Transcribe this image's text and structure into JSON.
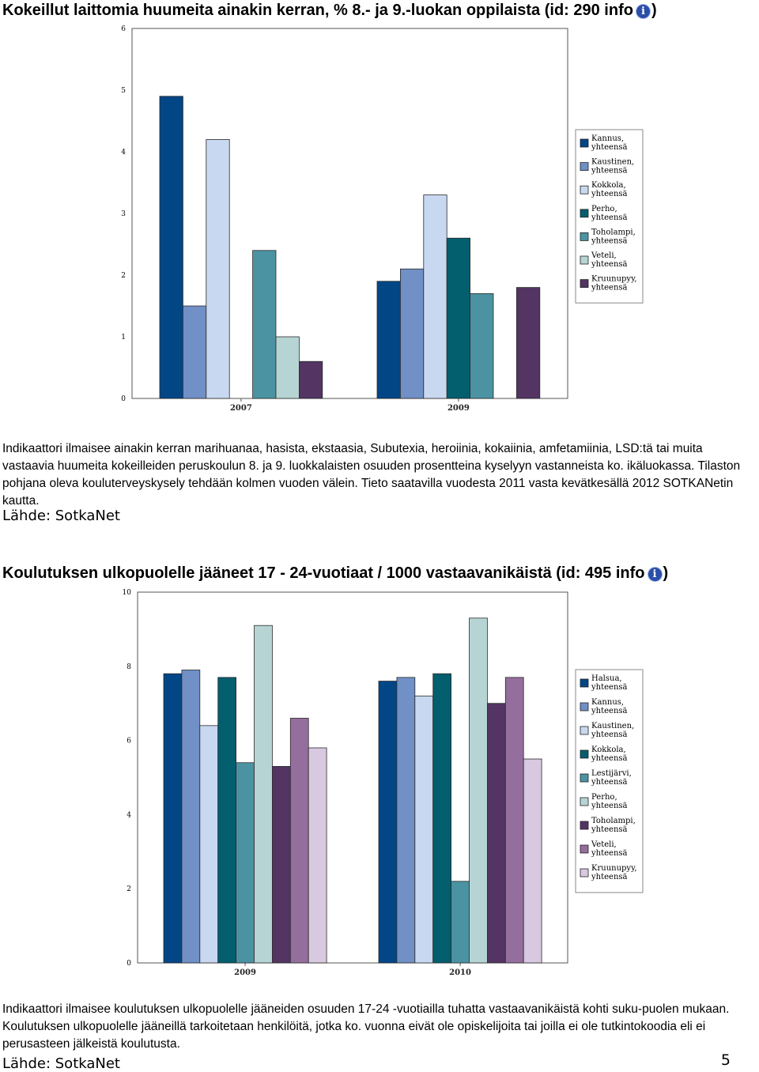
{
  "chart1": {
    "title": "Kokeillut laittomia huumeita ainakin kerran, % 8.- ja 9.-luokan oppilaista (id: 290 info",
    "title_close": ")",
    "description": "Indikaattori ilmaisee ainakin kerran marihuanaa, hasista, ekstaasia, Subutexia, heroiinia, kokaiinia, amfetamiinia, LSD:tä tai muita vastaavia huumeita kokeilleiden peruskoulun 8. ja 9. luokkalaisten osuuden prosentteina kyselyyn vastanneista ko. ikäluokassa. Tilaston pohjana oleva kouluterveyskysely tehdään kolmen vuoden välein. Tieto saatavilla vuodesta 2011 vasta kevätkesällä 2012 SOTKANetin kautta.",
    "source": "Lähde: SotkaNet"
  },
  "chart2": {
    "title": "Koulutuksen ulkopuolelle jääneet 17 - 24-vuotiaat / 1000 vastaavanikäistä (id: 495 info",
    "title_close": ")",
    "description": "Indikaattori ilmaisee koulutuksen ulkopuolelle jääneiden osuuden 17-24 -vuotiailla tuhatta vastaavanikäistä kohti suku-puolen mukaan. Koulutuksen ulkopuolelle jääneillä tarkoitetaan henkilöitä, jotka ko. vuonna eivät ole opiskelijoita tai joilla ei ole tutkintokoodia eli ei perusasteen jälkeistä koulutusta.",
    "source": "Lähde: SotkaNet"
  },
  "page_number": "5",
  "info_icon": "info-icon",
  "chart_data": [
    {
      "type": "bar",
      "title": "Kokeillut laittomia huumeita ainakin kerran, % 8.- ja 9.-luokan oppilaista",
      "categories": [
        "2007",
        "2009"
      ],
      "ylim": [
        0,
        6
      ],
      "yticks": [
        "0",
        "1",
        "2",
        "3",
        "4",
        "5",
        "6"
      ],
      "grid": false,
      "legend": "right",
      "series": [
        {
          "name": "Kannus, yhteensä",
          "color": "#034686",
          "values": [
            4.9,
            1.9
          ]
        },
        {
          "name": "Kaustinen, yhteensä",
          "color": "#7090c6",
          "values": [
            1.5,
            2.1
          ]
        },
        {
          "name": "Kokkola, yhteensä",
          "color": "#c8d8f0",
          "values": [
            4.2,
            3.3
          ]
        },
        {
          "name": "Perho, yhteensä",
          "color": "#035e6e",
          "values": [
            null,
            2.6
          ]
        },
        {
          "name": "Toholampi, yhteensä",
          "color": "#4b93a2",
          "values": [
            2.4,
            1.7
          ]
        },
        {
          "name": "Veteli, yhteensä",
          "color": "#b6d4d4",
          "values": [
            1.0,
            null
          ]
        },
        {
          "name": "Kruunupyy, yhteensä",
          "color": "#533463",
          "values": [
            0.6,
            1.8
          ]
        }
      ]
    },
    {
      "type": "bar",
      "title": "Koulutuksen ulkopuolelle jääneet 17 - 24-vuotiaat / 1000 vastaavanikäistä",
      "categories": [
        "2009",
        "2010"
      ],
      "ylim": [
        0,
        10
      ],
      "yticks": [
        "0",
        "2",
        "4",
        "6",
        "8",
        "10"
      ],
      "grid": false,
      "legend": "right",
      "series": [
        {
          "name": "Halsua, yhteensä",
          "color": "#034686",
          "values": [
            7.8,
            7.6
          ]
        },
        {
          "name": "Kannus, yhteensä",
          "color": "#7090c6",
          "values": [
            7.9,
            7.7
          ]
        },
        {
          "name": "Kaustinen, yhteensä",
          "color": "#c8d8f0",
          "values": [
            6.4,
            7.2
          ]
        },
        {
          "name": "Kokkola, yhteensä",
          "color": "#035e6e",
          "values": [
            7.7,
            7.8
          ]
        },
        {
          "name": "Lestijärvi, yhteensä",
          "color": "#4b93a2",
          "values": [
            5.4,
            2.2
          ]
        },
        {
          "name": "Perho, yhteensä",
          "color": "#b6d4d4",
          "values": [
            9.1,
            9.3
          ]
        },
        {
          "name": "Toholampi, yhteensä",
          "color": "#533463",
          "values": [
            5.3,
            7.0
          ]
        },
        {
          "name": "Veteli, yhteensä",
          "color": "#946e9c",
          "values": [
            6.6,
            7.7
          ]
        },
        {
          "name": "Kruunupyy, yhteensä",
          "color": "#d8c8e0",
          "values": [
            5.8,
            5.5
          ]
        }
      ]
    }
  ]
}
